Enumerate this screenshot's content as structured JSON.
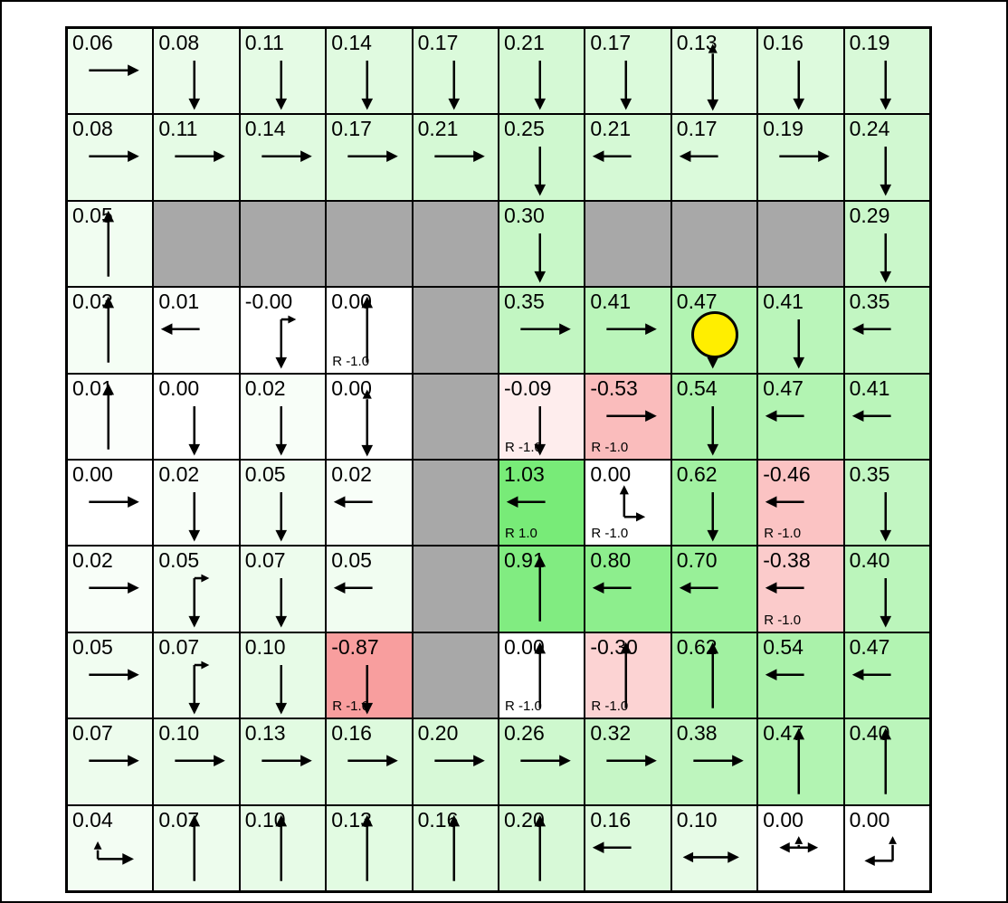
{
  "board": {
    "rows": 10,
    "cols": 10,
    "agent": {
      "row": 4,
      "col": 8
    },
    "colors": {
      "page_background": "#ffffff",
      "grid_line": "#000000",
      "wall": "#a8a8a8",
      "text": "#000000",
      "positive_full": "#78eb78",
      "negative_full": "#f79393",
      "zero_cell": "#ffffff",
      "agent_fill": "#ffee00",
      "agent_border": "#000000"
    },
    "cells": [
      [
        {
          "v": "0.06",
          "a": "right"
        },
        {
          "v": "0.08",
          "a": "down"
        },
        {
          "v": "0.11",
          "a": "down"
        },
        {
          "v": "0.14",
          "a": "down"
        },
        {
          "v": "0.17",
          "a": "down"
        },
        {
          "v": "0.21",
          "a": "down"
        },
        {
          "v": "0.17",
          "a": "down"
        },
        {
          "v": "0.13",
          "a": "up-down"
        },
        {
          "v": "0.16",
          "a": "down"
        },
        {
          "v": "0.19",
          "a": "down"
        }
      ],
      [
        {
          "v": "0.08",
          "a": "right"
        },
        {
          "v": "0.11",
          "a": "right"
        },
        {
          "v": "0.14",
          "a": "right"
        },
        {
          "v": "0.17",
          "a": "right"
        },
        {
          "v": "0.21",
          "a": "right"
        },
        {
          "v": "0.25",
          "a": "down"
        },
        {
          "v": "0.21",
          "a": "left"
        },
        {
          "v": "0.17",
          "a": "left"
        },
        {
          "v": "0.19",
          "a": "right"
        },
        {
          "v": "0.24",
          "a": "down"
        }
      ],
      [
        {
          "v": "0.05",
          "a": "up"
        },
        {
          "wall": true
        },
        {
          "wall": true
        },
        {
          "wall": true
        },
        {
          "wall": true
        },
        {
          "v": "0.30",
          "a": "down"
        },
        {
          "wall": true
        },
        {
          "wall": true
        },
        {
          "wall": true
        },
        {
          "v": "0.29",
          "a": "down"
        }
      ],
      [
        {
          "v": "0.03",
          "a": "up"
        },
        {
          "v": "0.01",
          "a": "left"
        },
        {
          "v": "-0.00",
          "a": "down-right"
        },
        {
          "v": "0.00",
          "a": "up",
          "r": "R -1.0"
        },
        {
          "wall": true
        },
        {
          "v": "0.35",
          "a": "right"
        },
        {
          "v": "0.41",
          "a": "right"
        },
        {
          "v": "0.47",
          "a": "down"
        },
        {
          "v": "0.41",
          "a": "down"
        },
        {
          "v": "0.35",
          "a": "left"
        }
      ],
      [
        {
          "v": "0.01",
          "a": "up"
        },
        {
          "v": "0.00",
          "a": "down"
        },
        {
          "v": "0.02",
          "a": "down"
        },
        {
          "v": "0.00",
          "a": "up-down"
        },
        {
          "wall": true
        },
        {
          "v": "-0.09",
          "a": "down",
          "r": "R -1.0"
        },
        {
          "v": "-0.53",
          "a": "right",
          "r": "R -1.0"
        },
        {
          "v": "0.54",
          "a": "down"
        },
        {
          "v": "0.47",
          "a": "left"
        },
        {
          "v": "0.41",
          "a": "left"
        }
      ],
      [
        {
          "v": "0.00",
          "a": "right"
        },
        {
          "v": "0.02",
          "a": "down"
        },
        {
          "v": "0.05",
          "a": "down"
        },
        {
          "v": "0.02",
          "a": "left"
        },
        {
          "wall": true
        },
        {
          "v": "1.03",
          "a": "left",
          "r": "R 1.0"
        },
        {
          "v": "0.00",
          "a": "up-right",
          "r": "R -1.0"
        },
        {
          "v": "0.62",
          "a": "down"
        },
        {
          "v": "-0.46",
          "a": "left",
          "r": "R -1.0"
        },
        {
          "v": "0.35",
          "a": "down"
        }
      ],
      [
        {
          "v": "0.02",
          "a": "right"
        },
        {
          "v": "0.05",
          "a": "down-right"
        },
        {
          "v": "0.07",
          "a": "down"
        },
        {
          "v": "0.05",
          "a": "left"
        },
        {
          "wall": true
        },
        {
          "v": "0.91",
          "a": "up"
        },
        {
          "v": "0.80",
          "a": "left"
        },
        {
          "v": "0.70",
          "a": "left"
        },
        {
          "v": "-0.38",
          "a": "left",
          "r": "R -1.0"
        },
        {
          "v": "0.40",
          "a": "down"
        }
      ],
      [
        {
          "v": "0.05",
          "a": "right"
        },
        {
          "v": "0.07",
          "a": "down-right"
        },
        {
          "v": "0.10",
          "a": "down"
        },
        {
          "v": "-0.87",
          "a": "down",
          "r": "R -1.0"
        },
        {
          "wall": true
        },
        {
          "v": "0.00",
          "a": "up",
          "r": "R -1.0"
        },
        {
          "v": "-0.30",
          "a": "up",
          "r": "R -1.0"
        },
        {
          "v": "0.62",
          "a": "up"
        },
        {
          "v": "0.54",
          "a": "left"
        },
        {
          "v": "0.47",
          "a": "left"
        }
      ],
      [
        {
          "v": "0.07",
          "a": "right"
        },
        {
          "v": "0.10",
          "a": "right"
        },
        {
          "v": "0.13",
          "a": "right"
        },
        {
          "v": "0.16",
          "a": "right"
        },
        {
          "v": "0.20",
          "a": "right"
        },
        {
          "v": "0.26",
          "a": "right"
        },
        {
          "v": "0.32",
          "a": "right"
        },
        {
          "v": "0.38",
          "a": "right"
        },
        {
          "v": "0.47",
          "a": "up"
        },
        {
          "v": "0.40",
          "a": "up"
        }
      ],
      [
        {
          "v": "0.04",
          "a": "right-up"
        },
        {
          "v": "0.07",
          "a": "up"
        },
        {
          "v": "0.10",
          "a": "up"
        },
        {
          "v": "0.13",
          "a": "up"
        },
        {
          "v": "0.16",
          "a": "up"
        },
        {
          "v": "0.20",
          "a": "up"
        },
        {
          "v": "0.16",
          "a": "left"
        },
        {
          "v": "0.10",
          "a": "left-right"
        },
        {
          "v": "0.00",
          "a": "left-right-up"
        },
        {
          "v": "0.00",
          "a": "left-up"
        }
      ]
    ]
  }
}
